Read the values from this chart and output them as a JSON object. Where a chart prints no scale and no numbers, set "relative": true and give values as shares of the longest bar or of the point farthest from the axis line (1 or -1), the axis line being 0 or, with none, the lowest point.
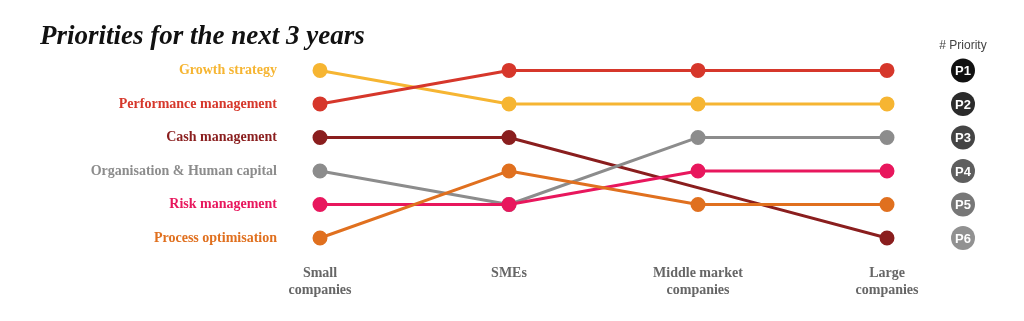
{
  "chart_data": {
    "type": "line",
    "title": "Priorities for the next 3 years",
    "ylabel": "# Priority",
    "relative": true,
    "categories": [
      "Small companies",
      "SMEs",
      "Middle market companies",
      "Large companies"
    ],
    "series": [
      {
        "name": "Growth strategy",
        "color": "#f6b532",
        "values": [
          1,
          0.8,
          0.8,
          0.8
        ]
      },
      {
        "name": "Performance management",
        "color": "#d6372b",
        "values": [
          0.8,
          1,
          1,
          1
        ]
      },
      {
        "name": "Cash management",
        "color": "#8a1e1e",
        "values": [
          0.6,
          0.6,
          null,
          0
        ]
      },
      {
        "name": "Organisation & Human capital",
        "color": "#8c8c8c",
        "values": [
          0.4,
          0.2,
          0.6,
          0.6
        ]
      },
      {
        "name": "Risk management",
        "color": "#e8175d",
        "values": [
          0.2,
          0.2,
          0.4,
          0.4
        ]
      },
      {
        "name": "Process optimisation",
        "color": "#e0701f",
        "values": [
          0,
          0.4,
          0.2,
          0.2
        ]
      }
    ],
    "annotations": [
      {
        "text": "P1",
        "y": 1
      },
      {
        "text": "P2",
        "y": 0.8
      },
      {
        "text": "P3",
        "y": 0.6
      },
      {
        "text": "P4",
        "y": 0.4
      },
      {
        "text": "P5",
        "y": 0.2
      },
      {
        "text": "P6",
        "y": 0
      }
    ],
    "marker": "circle",
    "line_style": "solid",
    "grid": false,
    "legend": false
  }
}
